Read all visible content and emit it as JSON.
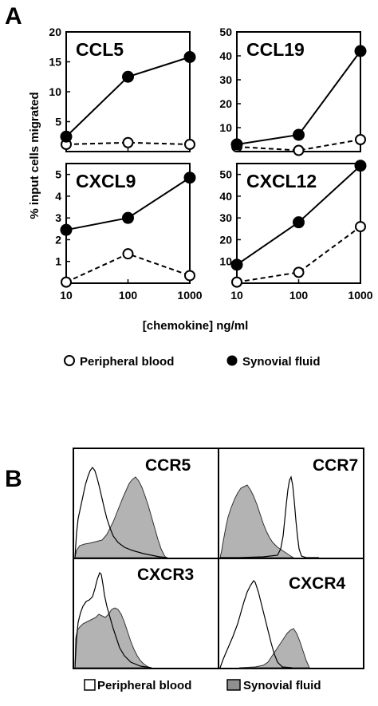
{
  "panels": {
    "a_label": "A",
    "b_label": "B"
  },
  "chart_data": [
    {
      "type": "line",
      "title": "CCL5",
      "x": [
        10,
        100,
        1000
      ],
      "x_ticks": [
        "10",
        "100",
        "1000"
      ],
      "xscale": "log",
      "ylim": [
        0,
        20
      ],
      "y_ticks": [
        "5",
        "10",
        "15",
        "20"
      ],
      "y_tick_values": [
        5,
        10,
        15,
        20
      ],
      "series": [
        {
          "name": "Peripheral blood",
          "values": [
            1.2,
            1.5,
            1.2
          ],
          "marker": "open-circle",
          "line": "dashed"
        },
        {
          "name": "Synovial fluid",
          "values": [
            2.5,
            12.5,
            15.8
          ],
          "marker": "filled-circle",
          "line": "solid"
        }
      ]
    },
    {
      "type": "line",
      "title": "CCL19",
      "x": [
        10,
        100,
        1000
      ],
      "x_ticks": [
        "10",
        "100",
        "1000"
      ],
      "xscale": "log",
      "ylim": [
        0,
        50
      ],
      "y_ticks": [
        "10",
        "20",
        "30",
        "40",
        "50"
      ],
      "y_tick_values": [
        10,
        20,
        30,
        40,
        50
      ],
      "series": [
        {
          "name": "Peripheral blood",
          "values": [
            2,
            0.5,
            5
          ],
          "marker": "open-circle",
          "line": "dashed"
        },
        {
          "name": "Synovial fluid",
          "values": [
            3,
            7,
            42
          ],
          "marker": "filled-circle",
          "line": "solid"
        }
      ]
    },
    {
      "type": "line",
      "title": "CXCL9",
      "x": [
        10,
        100,
        1000
      ],
      "x_ticks": [
        "10",
        "100",
        "1000"
      ],
      "xscale": "log",
      "ylim": [
        0,
        5.5
      ],
      "y_ticks": [
        "1",
        "2",
        "3",
        "4",
        "5"
      ],
      "y_tick_values": [
        1,
        2,
        3,
        4,
        5
      ],
      "series": [
        {
          "name": "Peripheral blood",
          "values": [
            0.05,
            1.35,
            0.35
          ],
          "marker": "open-circle",
          "line": "dashed"
        },
        {
          "name": "Synovial fluid",
          "values": [
            2.45,
            3.0,
            4.85
          ],
          "marker": "filled-circle",
          "line": "solid"
        }
      ]
    },
    {
      "type": "line",
      "title": "CXCL12",
      "x": [
        10,
        100,
        1000
      ],
      "x_ticks": [
        "10",
        "100",
        "1000"
      ],
      "xscale": "log",
      "ylim": [
        0,
        55
      ],
      "y_ticks": [
        "10",
        "20",
        "30",
        "40",
        "50"
      ],
      "y_tick_values": [
        10,
        20,
        30,
        40,
        50
      ],
      "series": [
        {
          "name": "Peripheral blood",
          "values": [
            0.5,
            5,
            26
          ],
          "marker": "open-circle",
          "line": "dashed"
        },
        {
          "name": "Synovial fluid",
          "values": [
            8.5,
            28,
            54
          ],
          "marker": "filled-circle",
          "line": "solid"
        }
      ]
    }
  ],
  "shared_axes": {
    "ylabel": "% input cells migrated",
    "xlabel": "[chemokine] ng/ml"
  },
  "legend_a": {
    "peripheral": "Peripheral blood",
    "synovial": "Synovial fluid"
  },
  "histograms": {
    "labels": [
      "CCR5",
      "CCR7",
      "CXCR3",
      "CXCR4"
    ],
    "legend": {
      "peripheral": "Peripheral blood",
      "synovial": "Synovial fluid"
    },
    "colors": {
      "peripheral_line": "#000000",
      "synovial_fill": "#b3b3b3"
    }
  }
}
